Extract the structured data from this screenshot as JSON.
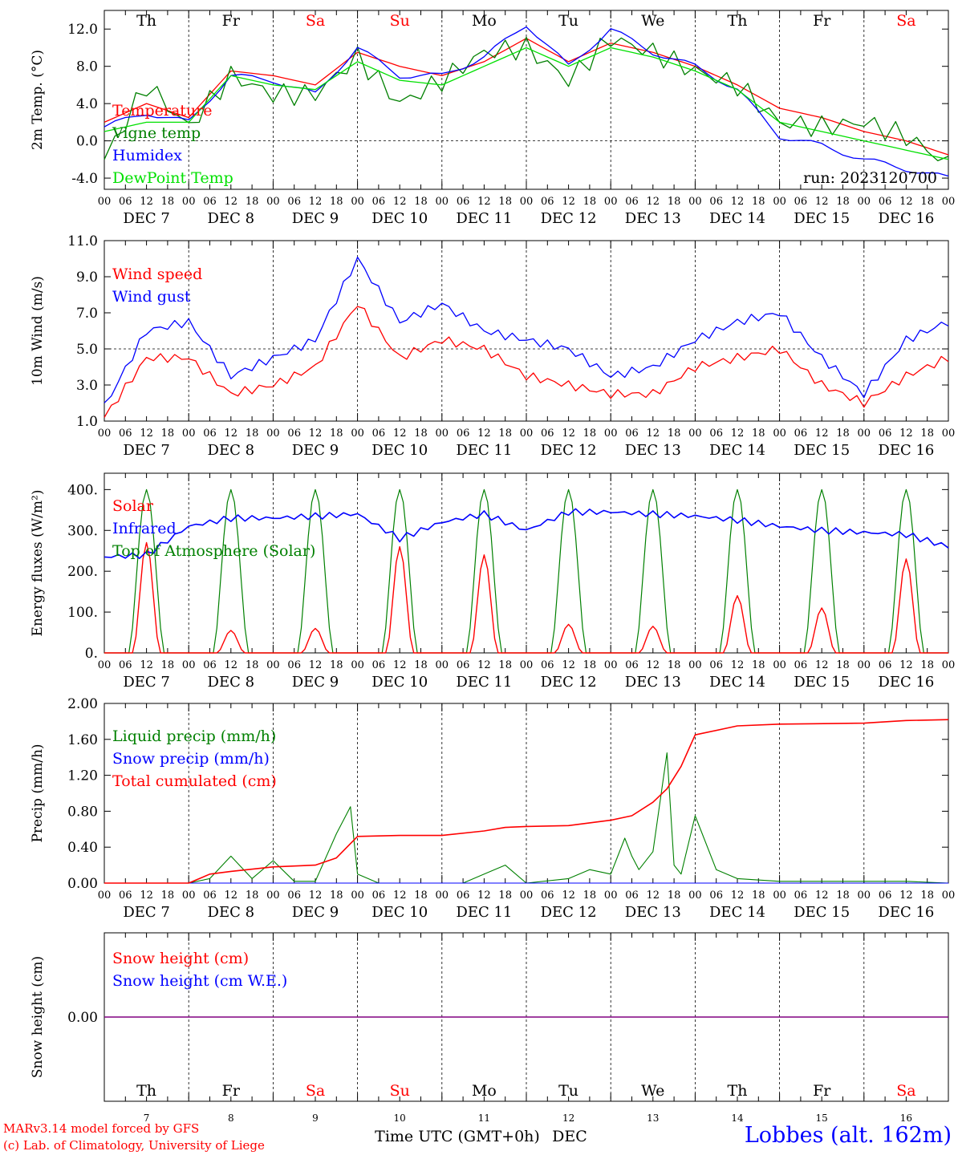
{
  "footer": {
    "credit_line1": "MARv3.14 model forced by GFS",
    "credit_line2": "(c) Lab. of Climatology, University of Liege",
    "station": "Lobbes (alt. 162m)",
    "xlabel": "Time UTC (GMT+0h)",
    "month": "DEC"
  },
  "colors": {
    "red": "#ff0000",
    "blue": "#0000ff",
    "green": "#008000",
    "light_green": "#00e000",
    "purple": "#800080",
    "weekend": "#ff0000",
    "weekday": "#000000"
  },
  "chart_data": [
    {
      "type": "line",
      "title": "",
      "ylabel": "2m Temp. (°C)",
      "ylim": [
        -5.2,
        14.0
      ],
      "yticks": [
        "12.0",
        "8.0",
        "4.0",
        "0.0",
        "-4.0"
      ],
      "ytick_values": [
        12,
        8,
        4,
        0,
        -4
      ],
      "hline": 0,
      "annotation": "run: 2023120700",
      "legend_position": "left",
      "day_abbrevs": [
        "Th",
        "Fr",
        "Sa",
        "Su",
        "Mo",
        "Tu",
        "We",
        "Th",
        "Fr",
        "Sa"
      ],
      "weekend_days": [
        2,
        3,
        9
      ],
      "x_hours": [
        0,
        12,
        24,
        36,
        48,
        60,
        72,
        84,
        96,
        108,
        120,
        132,
        144,
        156,
        168,
        180,
        192,
        204,
        216,
        228,
        240
      ],
      "series": [
        {
          "name": "Temperature",
          "color": "#ff0000",
          "values": [
            2.0,
            4.0,
            2.5,
            7.5,
            7.0,
            6.0,
            9.5,
            8.0,
            7.0,
            8.5,
            11.0,
            8.5,
            10.5,
            9.5,
            8.0,
            6.0,
            3.5,
            2.5,
            1.0,
            0.0,
            -1.5
          ]
        },
        {
          "name": "Vigne temp",
          "color": "#008000",
          "values": [
            -2.0,
            6.0,
            1.5,
            7.0,
            5.0,
            5.0,
            9.0,
            4.0,
            6.5,
            9.5,
            10.0,
            6.5,
            11.0,
            9.5,
            7.5,
            6.0,
            2.0,
            1.5,
            2.0,
            0.5,
            -2.5
          ]
        },
        {
          "name": "Humidex",
          "color": "#0000ff",
          "values": [
            1.5,
            3.0,
            2.0,
            7.0,
            6.5,
            5.0,
            10.0,
            7.0,
            7.0,
            9.0,
            12.5,
            8.0,
            12.0,
            9.5,
            8.0,
            5.5,
            0.5,
            -0.5,
            -2.0,
            -3.0,
            -4.0
          ]
        },
        {
          "name": "DewPoint Temp",
          "color": "#00e000",
          "values": [
            1.0,
            2.0,
            2.0,
            7.0,
            6.0,
            5.5,
            8.5,
            6.5,
            6.0,
            8.0,
            10.0,
            8.0,
            10.0,
            9.0,
            7.5,
            5.5,
            2.0,
            1.0,
            0.0,
            -1.0,
            -2.0
          ]
        }
      ]
    },
    {
      "type": "line",
      "title": "",
      "ylabel": "10m Wind (m/s)",
      "ylim": [
        1.0,
        11.0
      ],
      "yticks": [
        "11.0",
        "9.0",
        "7.0",
        "5.0",
        "3.0",
        "1.0"
      ],
      "ytick_values": [
        11,
        9,
        7,
        5,
        3,
        1
      ],
      "hline": 5,
      "legend_position": "left",
      "x_hours": [
        0,
        12,
        24,
        36,
        48,
        60,
        72,
        84,
        96,
        108,
        120,
        132,
        144,
        156,
        168,
        180,
        192,
        204,
        216,
        228,
        240
      ],
      "series": [
        {
          "name": "Wind speed",
          "color": "#ff0000",
          "values": [
            1.2,
            4.5,
            4.5,
            2.5,
            3.0,
            4.0,
            7.5,
            4.5,
            5.5,
            5.0,
            3.5,
            3.0,
            2.5,
            2.5,
            4.0,
            4.5,
            5.0,
            3.0,
            2.0,
            3.5,
            4.5
          ]
        },
        {
          "name": "Wind gust",
          "color": "#0000ff",
          "values": [
            1.8,
            6.0,
            6.5,
            3.5,
            4.5,
            5.5,
            10.0,
            6.5,
            7.5,
            6.0,
            5.5,
            5.0,
            3.5,
            4.0,
            5.5,
            6.5,
            7.0,
            4.5,
            2.5,
            5.5,
            6.5
          ]
        }
      ]
    },
    {
      "type": "line",
      "title": "",
      "ylabel": "Energy fluxes (W/m²)",
      "ylim": [
        0,
        440
      ],
      "yticks": [
        "400.",
        "300.",
        "200.",
        "100.",
        "0."
      ],
      "ytick_values": [
        400,
        300,
        200,
        100,
        0
      ],
      "legend_position": "left",
      "solar_peaks": [
        270,
        55,
        60,
        260,
        240,
        70,
        65,
        140,
        110,
        230
      ],
      "toa_peak": 400,
      "infrared_hours": [
        0,
        12,
        24,
        36,
        48,
        60,
        72,
        84,
        96,
        108,
        120,
        132,
        144,
        156,
        168,
        180,
        192,
        204,
        216,
        228,
        240
      ],
      "infrared_values": [
        235,
        240,
        310,
        330,
        330,
        335,
        340,
        280,
        320,
        340,
        300,
        345,
        345,
        340,
        335,
        325,
        310,
        300,
        295,
        290,
        260
      ],
      "series": [
        {
          "name": "Solar",
          "color": "#ff0000"
        },
        {
          "name": "Infrared",
          "color": "#0000ff"
        },
        {
          "name": "Top of Atmosphere (Solar)",
          "color": "#008000"
        }
      ]
    },
    {
      "type": "line",
      "title": "",
      "ylabel": "Precip (mm/h)",
      "ylim": [
        0,
        2.0
      ],
      "yticks": [
        "2.00",
        "1.60",
        "1.20",
        "0.80",
        "0.40",
        "0.00"
      ],
      "ytick_values": [
        2.0,
        1.6,
        1.2,
        0.8,
        0.4,
        0.0
      ],
      "legend_position": "left",
      "series": [
        {
          "name": "Liquid precip (mm/h)",
          "color": "#008000",
          "x_hours": [
            24,
            30,
            36,
            42,
            48,
            54,
            60,
            66,
            70,
            72,
            78,
            90,
            102,
            108,
            114,
            120,
            132,
            138,
            144,
            148,
            150,
            152,
            156,
            160,
            162,
            164,
            168,
            174,
            180,
            192,
            216,
            228
          ],
          "values": [
            0.0,
            0.05,
            0.3,
            0.05,
            0.25,
            0.02,
            0.02,
            0.55,
            0.85,
            0.1,
            0.0,
            0.0,
            0.0,
            0.1,
            0.2,
            0.0,
            0.05,
            0.15,
            0.1,
            0.5,
            0.3,
            0.15,
            0.35,
            1.45,
            0.2,
            0.1,
            0.75,
            0.15,
            0.05,
            0.02,
            0.02,
            0.02
          ]
        },
        {
          "name": "Snow precip (mm/h)",
          "color": "#0000ff",
          "x_hours": [
            0,
            240
          ],
          "values": [
            0.0,
            0.0
          ]
        },
        {
          "name": "Total cumulated (cm)",
          "color": "#ff0000",
          "x_hours": [
            0,
            24,
            30,
            36,
            48,
            60,
            66,
            72,
            84,
            96,
            108,
            114,
            120,
            132,
            144,
            150,
            156,
            160,
            164,
            168,
            180,
            192,
            216,
            228,
            240
          ],
          "values": [
            0.0,
            0.0,
            0.1,
            0.13,
            0.18,
            0.2,
            0.28,
            0.52,
            0.53,
            0.53,
            0.58,
            0.62,
            0.63,
            0.64,
            0.7,
            0.75,
            0.9,
            1.05,
            1.3,
            1.65,
            1.75,
            1.77,
            1.78,
            1.81,
            1.82
          ]
        }
      ]
    },
    {
      "type": "line",
      "title": "",
      "ylabel": "Snow height (cm)",
      "ylim": [
        -1,
        1
      ],
      "yticks": [
        "0.00"
      ],
      "ytick_values": [
        0
      ],
      "legend_position": "left",
      "day_abbrevs": [
        "Th",
        "Fr",
        "Sa",
        "Su",
        "Mo",
        "Tu",
        "We",
        "Th",
        "Fr",
        "Sa"
      ],
      "day_numbers": [
        "7",
        "8",
        "9",
        "10",
        "11",
        "12",
        "13",
        "14",
        "15",
        "16"
      ],
      "series": [
        {
          "name": "Snow height (cm)",
          "color": "#ff0000",
          "x_hours": [
            0,
            240
          ],
          "values": [
            0,
            0
          ]
        },
        {
          "name": "Snow height (cm W.E.)",
          "color": "#0000ff",
          "x_hours": [
            0,
            240
          ],
          "values": [
            0,
            0
          ]
        }
      ]
    }
  ],
  "xaxis": {
    "hour_labels": [
      "00",
      "06",
      "12",
      "18"
    ],
    "day_labels": [
      "DEC  7",
      "DEC  8",
      "DEC  9",
      "DEC 10",
      "DEC 11",
      "DEC 12",
      "DEC 13",
      "DEC 14",
      "DEC 15",
      "DEC 16"
    ]
  }
}
